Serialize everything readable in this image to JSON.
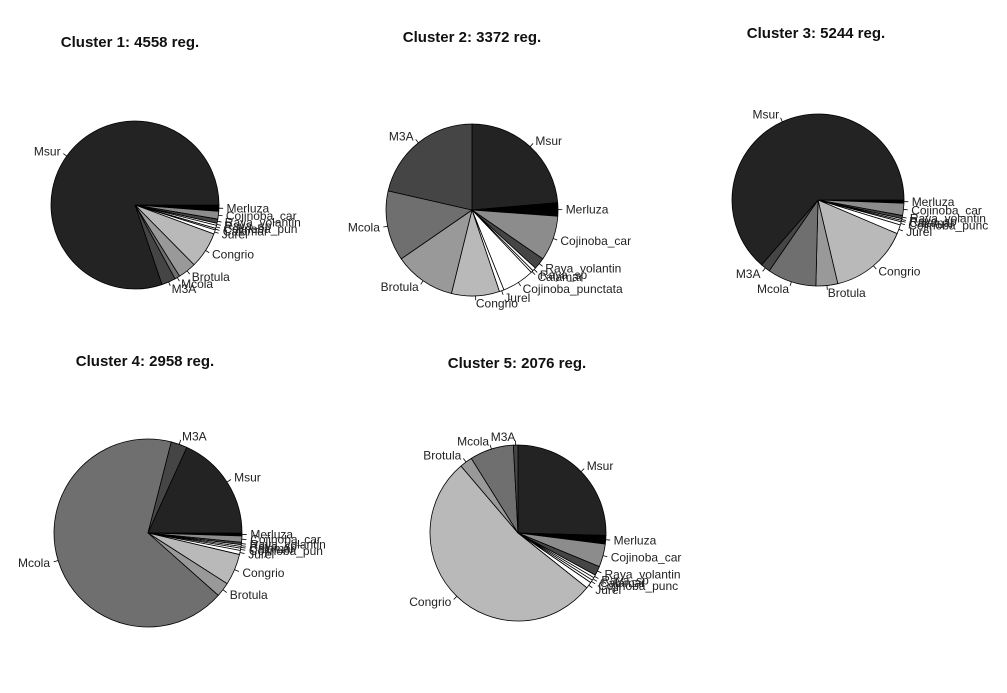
{
  "chart_data": [
    {
      "type": "pie",
      "title": "Cluster 1: 4558 reg.",
      "slices": [
        {
          "label": "Merluza",
          "value": 1.2,
          "color": "#000000"
        },
        {
          "label": "Cojinoba_car",
          "value": 1.5,
          "color": "#8c8c8c"
        },
        {
          "label": "Raya_volantin",
          "value": 0.8,
          "color": "#454545"
        },
        {
          "label": "Raya_sp",
          "value": 0.4,
          "color": "#ffffff"
        },
        {
          "label": "Cojinoba_pun",
          "value": 0.6,
          "color": "#ffffff"
        },
        {
          "label": "Calamar",
          "value": 0.3,
          "color": "#ffffff"
        },
        {
          "label": "Jurel",
          "value": 0.8,
          "color": "#ffffff"
        },
        {
          "label": "Congrio",
          "value": 7.0,
          "color": "#b9b9b9"
        },
        {
          "label": "Brotula",
          "value": 3.5,
          "color": "#999999"
        },
        {
          "label": "Mcola",
          "value": 1.0,
          "color": "#6f6f6f"
        },
        {
          "label": "M3A",
          "value": 2.7,
          "color": "#454545"
        },
        {
          "label": "Msur",
          "value": 80.2,
          "color": "#232323"
        }
      ]
    },
    {
      "type": "pie",
      "title": "Cluster 2: 3372 reg.",
      "slices": [
        {
          "label": "Msur",
          "value": 21.5,
          "color": "#232323"
        },
        {
          "label": "Merluza",
          "value": 2.3,
          "color": "#000000"
        },
        {
          "label": "Cojinoba_car",
          "value": 7.7,
          "color": "#8c8c8c"
        },
        {
          "label": "Raya_volantin",
          "value": 2.0,
          "color": "#454545"
        },
        {
          "label": "Raya_sp",
          "value": 0.6,
          "color": "#ffffff"
        },
        {
          "label": "Calamar",
          "value": 0.4,
          "color": "#ffffff"
        },
        {
          "label": "Cojinoba_punctata",
          "value": 5.5,
          "color": "#ffffff"
        },
        {
          "label": "Jurel",
          "value": 0.8,
          "color": "#ffffff"
        },
        {
          "label": "Congrio",
          "value": 8.2,
          "color": "#b9b9b9"
        },
        {
          "label": "Brotula",
          "value": 10.5,
          "color": "#999999"
        },
        {
          "label": "Mcola",
          "value": 12.0,
          "color": "#6f6f6f"
        },
        {
          "label": "M3A",
          "value": 19.5,
          "color": "#454545"
        }
      ]
    },
    {
      "type": "pie",
      "title": "Cluster 3: 5244 reg.",
      "slices": [
        {
          "label": "Merluza",
          "value": 0.6,
          "color": "#000000"
        },
        {
          "label": "Cojinoba_car",
          "value": 2.3,
          "color": "#8c8c8c"
        },
        {
          "label": "Raya_volantin",
          "value": 0.6,
          "color": "#454545"
        },
        {
          "label": "Raya_sp",
          "value": 0.3,
          "color": "#ffffff"
        },
        {
          "label": "Calamar",
          "value": 0.3,
          "color": "#ffffff"
        },
        {
          "label": "Cojinoba_punc",
          "value": 0.6,
          "color": "#ffffff"
        },
        {
          "label": "Jurel",
          "value": 1.7,
          "color": "#ffffff"
        },
        {
          "label": "Congrio",
          "value": 14.9,
          "color": "#b9b9b9"
        },
        {
          "label": "Brotula",
          "value": 4.1,
          "color": "#999999"
        },
        {
          "label": "Mcola",
          "value": 9.2,
          "color": "#6f6f6f"
        },
        {
          "label": "M3A",
          "value": 1.8,
          "color": "#454545"
        },
        {
          "label": "Msur",
          "value": 63.6,
          "color": "#232323"
        }
      ]
    },
    {
      "type": "pie",
      "title": "Cluster 4: 2958 reg.",
      "slices": [
        {
          "label": "Merluza",
          "value": 0.5,
          "color": "#000000"
        },
        {
          "label": "Cojinoba_car",
          "value": 1.1,
          "color": "#8c8c8c"
        },
        {
          "label": "Raya_volantin",
          "value": 0.4,
          "color": "#454545"
        },
        {
          "label": "Raya_sp",
          "value": 0.3,
          "color": "#ffffff"
        },
        {
          "label": "Calamar",
          "value": 0.3,
          "color": "#ffffff"
        },
        {
          "label": "Cojinoba_pun",
          "value": 0.4,
          "color": "#ffffff"
        },
        {
          "label": "Jurel",
          "value": 0.7,
          "color": "#ffffff"
        },
        {
          "label": "Congrio",
          "value": 5.4,
          "color": "#b9b9b9"
        },
        {
          "label": "Brotula",
          "value": 2.5,
          "color": "#999999"
        },
        {
          "label": "Mcola",
          "value": 67.7,
          "color": "#6f6f6f"
        },
        {
          "label": "M3A",
          "value": 2.8,
          "color": "#454545"
        },
        {
          "label": "Msur",
          "value": 18.3,
          "color": "#232323"
        }
      ]
    },
    {
      "type": "pie",
      "title": "Cluster 5: 2076 reg.",
      "slices": [
        {
          "label": "Msur",
          "value": 24.0,
          "color": "#232323"
        },
        {
          "label": "Merluza",
          "value": 1.5,
          "color": "#000000"
        },
        {
          "label": "Cojinoba_car",
          "value": 4.0,
          "color": "#8c8c8c"
        },
        {
          "label": "Raya_volantin",
          "value": 1.6,
          "color": "#454545"
        },
        {
          "label": "Raya_sp",
          "value": 0.5,
          "color": "#ffffff"
        },
        {
          "label": "Calamar",
          "value": 0.5,
          "color": "#ffffff"
        },
        {
          "label": "Cojinoba_punc",
          "value": 0.5,
          "color": "#ffffff"
        },
        {
          "label": "Jurel",
          "value": 1.1,
          "color": "#ffffff"
        },
        {
          "label": "Congrio",
          "value": 50.1,
          "color": "#b9b9b9"
        },
        {
          "label": "Brotula",
          "value": 2.2,
          "color": "#999999"
        },
        {
          "label": "Mcola",
          "value": 7.6,
          "color": "#6f6f6f"
        },
        {
          "label": "M3A",
          "value": 0.8,
          "color": "#454545"
        }
      ]
    }
  ]
}
